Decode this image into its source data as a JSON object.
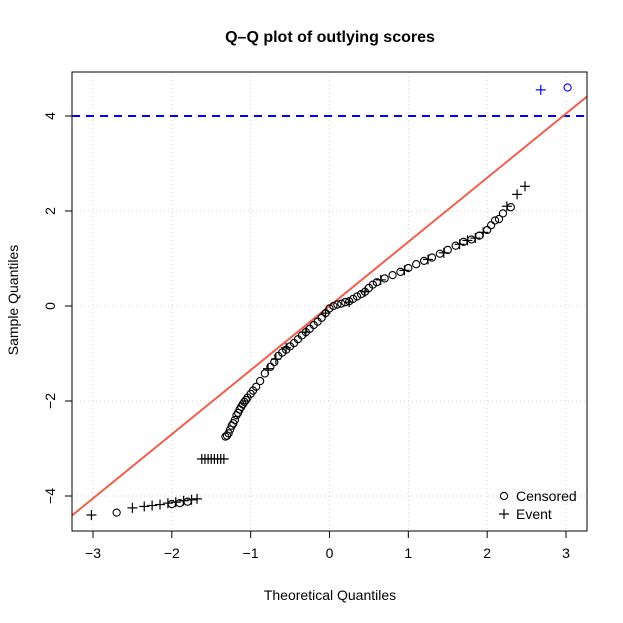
{
  "chart_data": {
    "type": "scatter",
    "title": "Q–Q plot of outlying scores",
    "xlabel": "Theoretical Quantiles",
    "ylabel": "Sample Quantiles",
    "xlim": [
      -3.3,
      3.3
    ],
    "ylim": [
      -4.85,
      5.0
    ],
    "xticks": [
      -3,
      -2,
      -1,
      0,
      1,
      2,
      3
    ],
    "yticks": [
      -4,
      -2,
      0,
      2,
      4
    ],
    "xtick_labels": [
      "−3",
      "−2",
      "−1",
      "0",
      "1",
      "2",
      "3"
    ],
    "ytick_labels": [
      "−4",
      "−2",
      "0",
      "2",
      "4"
    ],
    "grid": true,
    "legend_position": "bottom-right",
    "threshold": {
      "y": 4,
      "color": "#0000ff",
      "style": "dashed"
    },
    "reference_line": {
      "intercept": 0,
      "slope": 1.35,
      "color": "#f06050"
    },
    "series": [
      {
        "name": "Censored",
        "marker": "circle",
        "color": "#000000",
        "points": [
          [
            -2.7,
            -4.35
          ],
          [
            -2.0,
            -4.17
          ],
          [
            -1.9,
            -4.15
          ],
          [
            -1.8,
            -4.12
          ],
          [
            -1.32,
            -2.75
          ],
          [
            -1.3,
            -2.73
          ],
          [
            -1.28,
            -2.68
          ],
          [
            -1.26,
            -2.6
          ],
          [
            -1.24,
            -2.52
          ],
          [
            -1.22,
            -2.47
          ],
          [
            -1.2,
            -2.4
          ],
          [
            -1.18,
            -2.3
          ],
          [
            -1.16,
            -2.25
          ],
          [
            -1.14,
            -2.18
          ],
          [
            -1.12,
            -2.12
          ],
          [
            -1.1,
            -2.07
          ],
          [
            -1.08,
            -2.02
          ],
          [
            -1.06,
            -1.98
          ],
          [
            -1.04,
            -1.93
          ],
          [
            -1.0,
            -1.85
          ],
          [
            -0.97,
            -1.78
          ],
          [
            -0.93,
            -1.7
          ],
          [
            -0.88,
            -1.58
          ],
          [
            -0.82,
            -1.42
          ],
          [
            -0.75,
            -1.28
          ],
          [
            -0.7,
            -1.18
          ],
          [
            -0.65,
            -1.05
          ],
          [
            -0.6,
            -0.98
          ],
          [
            -0.55,
            -0.92
          ],
          [
            -0.5,
            -0.85
          ],
          [
            -0.45,
            -0.78
          ],
          [
            -0.4,
            -0.7
          ],
          [
            -0.35,
            -0.62
          ],
          [
            -0.3,
            -0.55
          ],
          [
            -0.25,
            -0.48
          ],
          [
            -0.2,
            -0.4
          ],
          [
            -0.15,
            -0.33
          ],
          [
            -0.1,
            -0.25
          ],
          [
            -0.05,
            -0.15
          ],
          [
            0.0,
            -0.05
          ],
          [
            0.05,
            0.0
          ],
          [
            0.1,
            0.03
          ],
          [
            0.15,
            0.05
          ],
          [
            0.2,
            0.08
          ],
          [
            0.25,
            0.1
          ],
          [
            0.3,
            0.15
          ],
          [
            0.35,
            0.2
          ],
          [
            0.4,
            0.25
          ],
          [
            0.45,
            0.3
          ],
          [
            0.5,
            0.38
          ],
          [
            0.55,
            0.45
          ],
          [
            0.6,
            0.5
          ],
          [
            0.7,
            0.58
          ],
          [
            0.8,
            0.65
          ],
          [
            0.9,
            0.72
          ],
          [
            1.0,
            0.8
          ],
          [
            1.1,
            0.88
          ],
          [
            1.2,
            0.95
          ],
          [
            1.3,
            1.02
          ],
          [
            1.4,
            1.1
          ],
          [
            1.5,
            1.18
          ],
          [
            1.6,
            1.27
          ],
          [
            1.7,
            1.35
          ],
          [
            1.8,
            1.4
          ],
          [
            1.9,
            1.48
          ],
          [
            2.0,
            1.6
          ],
          [
            2.05,
            1.7
          ],
          [
            2.1,
            1.8
          ],
          [
            2.15,
            1.83
          ],
          [
            2.2,
            1.95
          ],
          [
            2.3,
            2.08
          ],
          [
            3.02,
            4.6
          ]
        ]
      },
      {
        "name": "Event",
        "marker": "plus",
        "color": "#000000",
        "points": [
          [
            -3.02,
            -4.4
          ],
          [
            -2.5,
            -4.25
          ],
          [
            -2.35,
            -4.22
          ],
          [
            -2.25,
            -4.2
          ],
          [
            -2.15,
            -4.18
          ],
          [
            -2.05,
            -4.15
          ],
          [
            -1.95,
            -4.13
          ],
          [
            -1.85,
            -4.1
          ],
          [
            -1.75,
            -4.08
          ],
          [
            -1.68,
            -4.06
          ],
          [
            -1.62,
            -3.22
          ],
          [
            -1.58,
            -3.22
          ],
          [
            -1.54,
            -3.22
          ],
          [
            -1.5,
            -3.22
          ],
          [
            -1.46,
            -3.22
          ],
          [
            -1.42,
            -3.22
          ],
          [
            -1.38,
            -3.22
          ],
          [
            -1.34,
            -3.22
          ],
          [
            -0.78,
            -1.32
          ],
          [
            -0.68,
            -1.12
          ],
          [
            -0.55,
            -0.88
          ],
          [
            -0.3,
            -0.55
          ],
          [
            -0.05,
            -0.15
          ],
          [
            0.25,
            0.08
          ],
          [
            0.45,
            0.3
          ],
          [
            0.65,
            0.55
          ],
          [
            0.95,
            0.75
          ],
          [
            1.25,
            0.98
          ],
          [
            1.45,
            1.12
          ],
          [
            1.65,
            1.3
          ],
          [
            1.75,
            1.38
          ],
          [
            1.85,
            1.43
          ],
          [
            1.95,
            1.55
          ],
          [
            2.25,
            2.1
          ],
          [
            2.38,
            2.35
          ],
          [
            2.48,
            2.52
          ],
          [
            2.68,
            4.55
          ]
        ]
      }
    ],
    "outliers": [
      {
        "x": 2.68,
        "y": 4.55,
        "marker": "plus",
        "color": "#0000ff"
      },
      {
        "x": 3.02,
        "y": 4.6,
        "marker": "circle",
        "color": "#0000ff"
      }
    ]
  }
}
